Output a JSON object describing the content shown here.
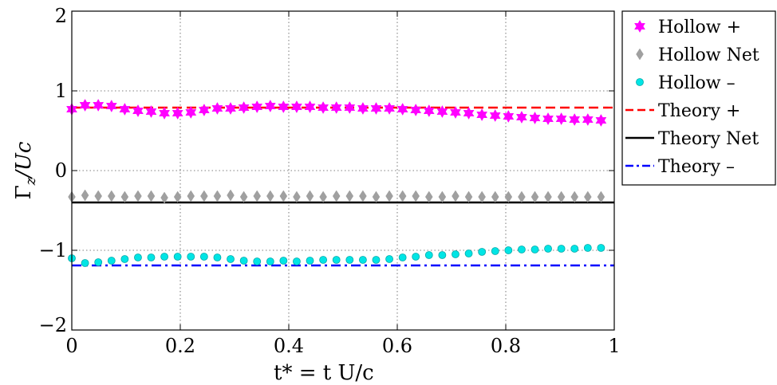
{
  "chart_data": {
    "type": "scatter",
    "title": "",
    "xlabel": "t* = t U/c",
    "ylabel": "Γz/Uc",
    "xlim": [
      0,
      1
    ],
    "ylim": [
      -2,
      2
    ],
    "xticks": [
      "0",
      "0.2",
      "0.4",
      "0.6",
      "0.8",
      "1"
    ],
    "yticks": [
      "2",
      "1",
      "0",
      "-1",
      "-2"
    ],
    "xtick_values": [
      0,
      0.2,
      0.4,
      0.6,
      0.8,
      1
    ],
    "ytick_values": [
      2,
      1,
      0,
      -1,
      -2
    ],
    "grid": true,
    "legend_position": "outside-right",
    "x": [
      0,
      0.0244,
      0.0488,
      0.0732,
      0.0976,
      0.122,
      0.1463,
      0.1707,
      0.1951,
      0.2195,
      0.2439,
      0.2683,
      0.2927,
      0.3171,
      0.3415,
      0.3659,
      0.3902,
      0.4146,
      0.439,
      0.4634,
      0.4878,
      0.5122,
      0.5366,
      0.561,
      0.5854,
      0.6098,
      0.6341,
      0.6585,
      0.6829,
      0.7073,
      0.7317,
      0.7561,
      0.7805,
      0.8049,
      0.8293,
      0.8537,
      0.878,
      0.9024,
      0.9268,
      0.9512,
      0.9756
    ],
    "series": [
      {
        "name": "Hollow +",
        "kind": "marker",
        "marker": "star",
        "color": "#ff00ff",
        "values": [
          0.77,
          0.82,
          0.82,
          0.81,
          0.77,
          0.75,
          0.74,
          0.72,
          0.72,
          0.73,
          0.76,
          0.78,
          0.78,
          0.79,
          0.8,
          0.81,
          0.8,
          0.8,
          0.8,
          0.79,
          0.79,
          0.79,
          0.78,
          0.78,
          0.78,
          0.77,
          0.76,
          0.75,
          0.74,
          0.73,
          0.72,
          0.7,
          0.69,
          0.68,
          0.67,
          0.66,
          0.65,
          0.65,
          0.64,
          0.64,
          0.63
        ]
      },
      {
        "name": "Hollow Net",
        "kind": "marker",
        "marker": "diamond",
        "color": "#a0a0a0",
        "values": [
          -0.33,
          -0.31,
          -0.32,
          -0.32,
          -0.33,
          -0.32,
          -0.32,
          -0.34,
          -0.33,
          -0.32,
          -0.32,
          -0.32,
          -0.31,
          -0.33,
          -0.32,
          -0.32,
          -0.32,
          -0.33,
          -0.32,
          -0.33,
          -0.32,
          -0.32,
          -0.32,
          -0.33,
          -0.32,
          -0.32,
          -0.32,
          -0.33,
          -0.33,
          -0.32,
          -0.33,
          -0.33,
          -0.33,
          -0.33,
          -0.33,
          -0.33,
          -0.33,
          -0.33,
          -0.33,
          -0.33,
          -0.33
        ]
      },
      {
        "name": "Hollow –",
        "kind": "marker",
        "marker": "circle",
        "color": "#00e5e5",
        "values": [
          -1.1,
          -1.16,
          -1.15,
          -1.13,
          -1.11,
          -1.09,
          -1.09,
          -1.08,
          -1.08,
          -1.08,
          -1.08,
          -1.09,
          -1.11,
          -1.13,
          -1.14,
          -1.14,
          -1.13,
          -1.14,
          -1.13,
          -1.12,
          -1.12,
          -1.12,
          -1.12,
          -1.12,
          -1.11,
          -1.09,
          -1.08,
          -1.06,
          -1.06,
          -1.05,
          -1.04,
          -1.02,
          -1.01,
          -1.0,
          -0.99,
          -0.99,
          -0.98,
          -0.98,
          -0.98,
          -0.97,
          -0.97
        ]
      },
      {
        "name": "Theory +",
        "kind": "line",
        "style": "dashed",
        "color": "#ff0000",
        "constant": 0.79
      },
      {
        "name": "Theory Net",
        "kind": "line",
        "style": "solid",
        "color": "#000000",
        "constant": -0.4
      },
      {
        "name": "Theory –",
        "kind": "line",
        "style": "dashdot",
        "color": "#0000ff",
        "constant": -1.19
      }
    ]
  }
}
